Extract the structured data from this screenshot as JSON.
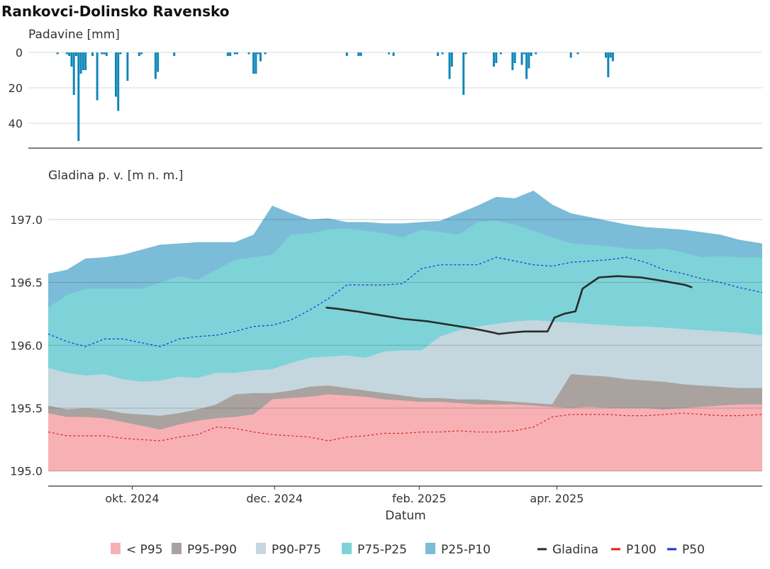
{
  "title": "Rankovci-Dolinsko Ravensko",
  "colors": {
    "lt_p95": "#f7b1b4",
    "p95_p90": "#aaa29f",
    "p90_p75": "#c4d7de",
    "p75_p25": "#7dd3d8",
    "p25_p10": "#7bbcd8",
    "precip": "#0e86b8",
    "gladina": "#2a2a2a",
    "p100": "#e21d1d",
    "p50": "#1530d8"
  },
  "chart_data": [
    {
      "type": "bar",
      "ylabel": "Padavine [mm]",
      "ylim": [
        0,
        52
      ],
      "y_reversed": true,
      "yticks": [
        0,
        20,
        40
      ],
      "grid": true,
      "x": [
        "2024-08-30",
        "2024-09-03",
        "2024-09-04",
        "2024-09-05",
        "2024-09-06",
        "2024-09-07",
        "2024-09-08",
        "2024-09-09",
        "2024-09-10",
        "2024-09-11",
        "2024-09-14",
        "2024-09-16",
        "2024-09-18",
        "2024-09-19",
        "2024-09-20",
        "2024-09-24",
        "2024-09-25",
        "2024-09-26",
        "2024-09-29",
        "2024-10-04",
        "2024-10-05",
        "2024-10-11",
        "2024-10-12",
        "2024-10-19",
        "2024-11-11",
        "2024-11-12",
        "2024-11-14",
        "2024-11-15",
        "2024-11-20",
        "2024-11-22",
        "2024-11-23",
        "2024-11-24",
        "2024-11-25",
        "2024-11-27",
        "2025-01-01",
        "2025-01-06",
        "2025-01-07",
        "2025-01-19",
        "2025-01-21",
        "2025-02-09",
        "2025-02-11",
        "2025-02-14",
        "2025-02-15",
        "2025-02-20",
        "2025-02-21",
        "2025-03-05",
        "2025-03-06",
        "2025-03-08",
        "2025-03-13",
        "2025-03-14",
        "2025-03-17",
        "2025-03-18",
        "2025-03-19",
        "2025-03-20",
        "2025-03-21",
        "2025-03-23",
        "2025-04-07",
        "2025-04-10",
        "2025-04-22",
        "2025-04-23",
        "2025-04-24",
        "2025-04-25"
      ],
      "values": [
        1,
        1,
        2,
        8,
        24,
        2,
        50,
        12,
        10,
        10,
        2,
        27,
        1,
        1,
        2,
        25,
        33,
        1,
        16,
        2,
        1,
        15,
        11,
        2,
        2,
        2,
        1,
        1,
        1,
        12,
        12,
        1,
        5,
        1,
        2,
        2,
        2,
        1,
        2,
        2,
        1,
        15,
        8,
        24,
        1,
        8,
        6,
        1,
        10,
        6,
        7,
        1,
        15,
        9,
        2,
        1,
        3,
        1,
        3,
        14,
        3,
        5
      ],
      "bar_color": "#0e86b8"
    },
    {
      "type": "area",
      "ylabel": "Gladina p. v. [m n. m.]",
      "xlabel": "Datum",
      "xlim": [
        "2024-08-26",
        "2025-06-28"
      ],
      "xticks": [
        {
          "date": "2024-10-01",
          "label": "okt. 2024"
        },
        {
          "date": "2024-12-01",
          "label": "dec. 2024"
        },
        {
          "date": "2025-02-01",
          "label": "feb. 2025"
        },
        {
          "date": "2025-04-01",
          "label": "apr. 2025"
        }
      ],
      "ylim": [
        194.88,
        197.45
      ],
      "yticks": [
        195.0,
        195.5,
        196.0,
        196.5,
        197.0
      ],
      "ytick_labels": [
        "195.0",
        "195.5",
        "196.0",
        "196.5",
        "197.0"
      ],
      "grid": true,
      "legend_position": "bottom",
      "baseline": 195.0,
      "x": [
        "2024-08-26",
        "2024-09-03",
        "2024-09-11",
        "2024-09-19",
        "2024-09-27",
        "2024-10-05",
        "2024-10-13",
        "2024-10-21",
        "2024-10-29",
        "2024-11-06",
        "2024-11-14",
        "2024-11-22",
        "2024-11-30",
        "2024-12-08",
        "2024-12-16",
        "2024-12-24",
        "2025-01-01",
        "2025-01-09",
        "2025-01-17",
        "2025-01-25",
        "2025-02-02",
        "2025-02-10",
        "2025-02-18",
        "2025-02-26",
        "2025-03-06",
        "2025-03-14",
        "2025-03-22",
        "2025-03-30",
        "2025-04-07",
        "2025-04-15",
        "2025-04-23",
        "2025-05-01",
        "2025-05-09",
        "2025-05-17",
        "2025-05-25",
        "2025-06-02",
        "2025-06-10",
        "2025-06-18",
        "2025-06-28"
      ],
      "series": [
        {
          "name": "< P95",
          "upper": [
            195.46,
            195.43,
            195.43,
            195.42,
            195.39,
            195.36,
            195.33,
            195.37,
            195.4,
            195.42,
            195.43,
            195.45,
            195.57,
            195.58,
            195.59,
            195.61,
            195.6,
            195.59,
            195.57,
            195.56,
            195.55,
            195.55,
            195.54,
            195.53,
            195.53,
            195.53,
            195.52,
            195.51,
            195.5,
            195.51,
            195.5,
            195.5,
            195.5,
            195.49,
            195.5,
            195.51,
            195.52,
            195.53,
            195.53
          ]
        },
        {
          "name": "P95-P90",
          "upper": [
            195.52,
            195.49,
            195.5,
            195.49,
            195.46,
            195.45,
            195.44,
            195.46,
            195.49,
            195.53,
            195.61,
            195.62,
            195.62,
            195.64,
            195.67,
            195.68,
            195.66,
            195.64,
            195.62,
            195.6,
            195.58,
            195.58,
            195.57,
            195.57,
            195.56,
            195.55,
            195.54,
            195.53,
            195.77,
            195.76,
            195.75,
            195.73,
            195.72,
            195.71,
            195.69,
            195.68,
            195.67,
            195.66,
            195.66
          ]
        },
        {
          "name": "P90-P75",
          "upper": [
            195.82,
            195.78,
            195.76,
            195.77,
            195.73,
            195.71,
            195.72,
            195.75,
            195.74,
            195.78,
            195.78,
            195.8,
            195.81,
            195.86,
            195.9,
            195.91,
            195.92,
            195.9,
            195.95,
            195.96,
            195.96,
            196.07,
            196.12,
            196.15,
            196.17,
            196.19,
            196.2,
            196.19,
            196.18,
            196.17,
            196.16,
            196.15,
            196.15,
            196.14,
            196.13,
            196.12,
            196.11,
            196.1,
            196.08
          ]
        },
        {
          "name": "P75-P25",
          "upper": [
            196.3,
            196.4,
            196.45,
            196.45,
            196.45,
            196.45,
            196.5,
            196.55,
            196.52,
            196.6,
            196.68,
            196.7,
            196.72,
            196.88,
            196.89,
            196.92,
            196.93,
            196.91,
            196.89,
            196.86,
            196.92,
            196.9,
            196.88,
            196.98,
            196.99,
            196.96,
            196.91,
            196.86,
            196.81,
            196.8,
            196.79,
            196.77,
            196.76,
            196.77,
            196.74,
            196.7,
            196.71,
            196.7,
            196.7
          ]
        },
        {
          "name": "P25-P10",
          "upper": [
            196.57,
            196.6,
            196.69,
            196.7,
            196.72,
            196.76,
            196.8,
            196.81,
            196.82,
            196.82,
            196.82,
            196.88,
            197.11,
            197.05,
            197.0,
            197.01,
            196.98,
            196.98,
            196.97,
            196.97,
            196.98,
            196.99,
            197.05,
            197.11,
            197.18,
            197.17,
            197.23,
            197.12,
            197.05,
            197.02,
            196.99,
            196.96,
            196.94,
            196.93,
            196.92,
            196.9,
            196.88,
            196.84,
            196.81
          ]
        }
      ],
      "lines": [
        {
          "name": "Gladina",
          "style": "solid",
          "x": [
            "2024-12-23",
            "2024-12-28",
            "2025-01-05",
            "2025-01-15",
            "2025-01-25",
            "2025-02-05",
            "2025-02-15",
            "2025-02-25",
            "2025-03-05",
            "2025-03-07",
            "2025-03-12",
            "2025-03-18",
            "2025-03-21",
            "2025-03-24",
            "2025-03-28",
            "2025-03-31",
            "2025-04-04",
            "2025-04-09",
            "2025-04-12",
            "2025-04-19",
            "2025-04-27",
            "2025-05-07",
            "2025-05-17",
            "2025-05-26",
            "2025-05-29"
          ],
          "y": [
            196.3,
            196.29,
            196.27,
            196.24,
            196.21,
            196.19,
            196.16,
            196.13,
            196.1,
            196.09,
            196.1,
            196.11,
            196.11,
            196.11,
            196.11,
            196.22,
            196.25,
            196.27,
            196.45,
            196.54,
            196.55,
            196.54,
            196.51,
            196.48,
            196.46
          ]
        },
        {
          "name": "P100",
          "style": "dashed",
          "x": [
            "2024-08-26",
            "2024-09-03",
            "2024-09-11",
            "2024-09-19",
            "2024-09-27",
            "2024-10-05",
            "2024-10-13",
            "2024-10-21",
            "2024-10-29",
            "2024-11-06",
            "2024-11-14",
            "2024-11-22",
            "2024-11-30",
            "2024-12-08",
            "2024-12-16",
            "2024-12-24",
            "2025-01-01",
            "2025-01-09",
            "2025-01-17",
            "2025-01-25",
            "2025-02-02",
            "2025-02-10",
            "2025-02-18",
            "2025-02-26",
            "2025-03-06",
            "2025-03-14",
            "2025-03-22",
            "2025-03-30",
            "2025-04-07",
            "2025-04-15",
            "2025-04-23",
            "2025-05-01",
            "2025-05-09",
            "2025-05-17",
            "2025-05-25",
            "2025-06-02",
            "2025-06-10",
            "2025-06-18",
            "2025-06-28"
          ],
          "y": [
            195.31,
            195.28,
            195.28,
            195.28,
            195.26,
            195.25,
            195.24,
            195.27,
            195.29,
            195.35,
            195.34,
            195.31,
            195.29,
            195.28,
            195.27,
            195.24,
            195.27,
            195.28,
            195.3,
            195.3,
            195.31,
            195.31,
            195.32,
            195.31,
            195.31,
            195.32,
            195.35,
            195.43,
            195.45,
            195.45,
            195.45,
            195.44,
            195.44,
            195.45,
            195.46,
            195.45,
            195.44,
            195.44,
            195.45
          ]
        },
        {
          "name": "P50",
          "style": "dashed",
          "x": [
            "2024-08-26",
            "2024-09-03",
            "2024-09-11",
            "2024-09-19",
            "2024-09-27",
            "2024-10-05",
            "2024-10-13",
            "2024-10-21",
            "2024-10-29",
            "2024-11-06",
            "2024-11-14",
            "2024-11-22",
            "2024-11-30",
            "2024-12-08",
            "2024-12-16",
            "2024-12-24",
            "2025-01-01",
            "2025-01-09",
            "2025-01-17",
            "2025-01-25",
            "2025-02-02",
            "2025-02-10",
            "2025-02-18",
            "2025-02-26",
            "2025-03-06",
            "2025-03-14",
            "2025-03-22",
            "2025-03-30",
            "2025-04-07",
            "2025-04-15",
            "2025-04-23",
            "2025-05-01",
            "2025-05-09",
            "2025-05-17",
            "2025-05-25",
            "2025-06-02",
            "2025-06-10",
            "2025-06-18",
            "2025-06-28"
          ],
          "y": [
            196.09,
            196.03,
            195.99,
            196.05,
            196.05,
            196.02,
            195.99,
            196.05,
            196.07,
            196.08,
            196.11,
            196.15,
            196.16,
            196.2,
            196.28,
            196.37,
            196.48,
            196.48,
            196.48,
            196.49,
            196.61,
            196.64,
            196.64,
            196.64,
            196.7,
            196.67,
            196.64,
            196.63,
            196.66,
            196.67,
            196.68,
            196.7,
            196.66,
            196.6,
            196.57,
            196.53,
            196.5,
            196.46,
            196.42
          ]
        }
      ]
    }
  ],
  "legend": [
    {
      "label": "< P95",
      "kind": "box",
      "color": "#f7b1b4"
    },
    {
      "label": "P95-P90",
      "kind": "box",
      "color": "#aaa29f"
    },
    {
      "label": "P90-P75",
      "kind": "box",
      "color": "#c4d7de"
    },
    {
      "label": "P75-P25",
      "kind": "box",
      "color": "#7dd3d8"
    },
    {
      "label": "P25-P10",
      "kind": "box",
      "color": "#7bbcd8"
    },
    {
      "label": "Gladina",
      "kind": "line",
      "color": "#2a2a2a"
    },
    {
      "label": "P100",
      "kind": "line",
      "color": "#e21d1d"
    },
    {
      "label": "P50",
      "kind": "line",
      "color": "#1530d8"
    }
  ]
}
